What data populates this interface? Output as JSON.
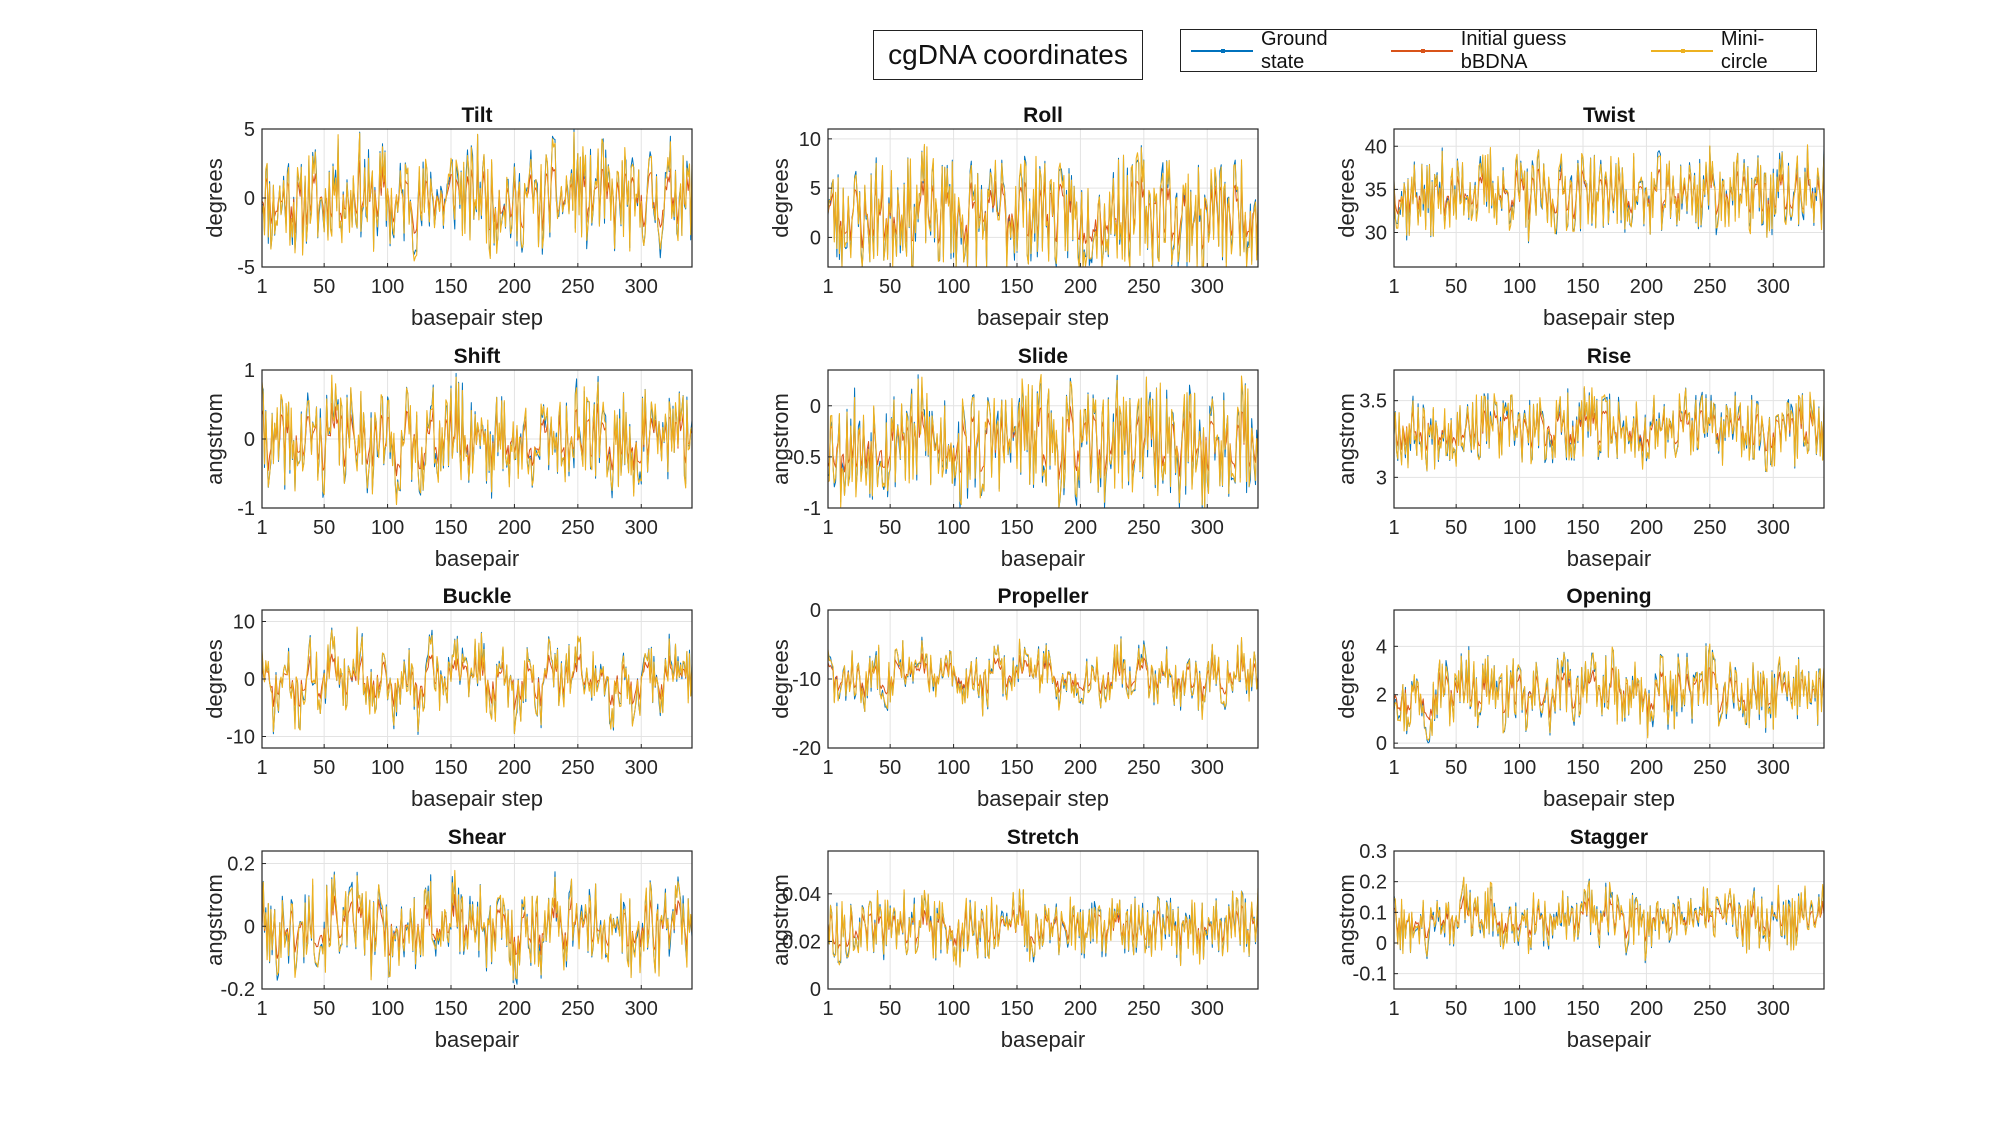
{
  "figure": {
    "title": "cgDNA coordinates",
    "legend": [
      {
        "label": "Ground state",
        "color": "#0072BD"
      },
      {
        "label": "Initial guess bBDNA",
        "color": "#D95319"
      },
      {
        "label": "Mini-circle",
        "color": "#EDB120"
      }
    ]
  },
  "chart_data": [
    {
      "type": "line",
      "title": "Tilt",
      "xlabel": "basepair step",
      "ylabel": "degrees",
      "xlim": [
        1,
        340
      ],
      "ylim": [
        -5,
        5
      ],
      "xticks": [
        1,
        50,
        100,
        150,
        200,
        250,
        300
      ],
      "yticks": [
        -5,
        0,
        5
      ],
      "center": 0,
      "amp": 3.6,
      "base_amp": 1.2,
      "seed": 11,
      "series": [
        {
          "name": "Ground state"
        },
        {
          "name": "Initial guess bBDNA"
        },
        {
          "name": "Mini-circle"
        }
      ]
    },
    {
      "type": "line",
      "title": "Roll",
      "xlabel": "basepair step",
      "ylabel": "degrees",
      "xlim": [
        1,
        340
      ],
      "ylim": [
        -3,
        11
      ],
      "xticks": [
        1,
        50,
        100,
        150,
        200,
        250,
        300
      ],
      "yticks": [
        0,
        5,
        10
      ],
      "center": 2.5,
      "amp": 5.5,
      "base_amp": 1.5,
      "seed": 23,
      "series": [
        {
          "name": "Ground state"
        },
        {
          "name": "Initial guess bBDNA"
        },
        {
          "name": "Mini-circle"
        }
      ]
    },
    {
      "type": "line",
      "title": "Twist",
      "xlabel": "basepair step",
      "ylabel": "degrees",
      "xlim": [
        1,
        340
      ],
      "ylim": [
        26,
        42
      ],
      "xticks": [
        1,
        50,
        100,
        150,
        200,
        250,
        300
      ],
      "yticks": [
        30,
        35,
        40
      ],
      "center": 34.5,
      "amp": 4.5,
      "base_amp": 1.2,
      "seed": 37,
      "series": [
        {
          "name": "Ground state"
        },
        {
          "name": "Initial guess bBDNA"
        },
        {
          "name": "Mini-circle"
        }
      ]
    },
    {
      "type": "line",
      "title": "Shift",
      "xlabel": "basepair",
      "ylabel": "angstrom",
      "xlim": [
        1,
        340
      ],
      "ylim": [
        -1,
        1
      ],
      "xticks": [
        1,
        50,
        100,
        150,
        200,
        250,
        300
      ],
      "yticks": [
        -1,
        0,
        1
      ],
      "center": 0,
      "amp": 0.7,
      "base_amp": 0.25,
      "seed": 41,
      "series": [
        {
          "name": "Ground state"
        },
        {
          "name": "Initial guess bBDNA"
        },
        {
          "name": "Mini-circle"
        }
      ]
    },
    {
      "type": "line",
      "title": "Slide",
      "xlabel": "basepair",
      "ylabel": "angstrom",
      "xlim": [
        1,
        340
      ],
      "ylim": [
        -1,
        0.35
      ],
      "xticks": [
        1,
        50,
        100,
        150,
        200,
        250,
        300
      ],
      "yticks": [
        -1,
        -0.5,
        0
      ],
      "center": -0.35,
      "amp": 0.55,
      "base_amp": 0.15,
      "seed": 53,
      "series": [
        {
          "name": "Ground state"
        },
        {
          "name": "Initial guess bBDNA"
        },
        {
          "name": "Mini-circle"
        }
      ]
    },
    {
      "type": "line",
      "title": "Rise",
      "xlabel": "basepair",
      "ylabel": "angstrom",
      "xlim": [
        1,
        340
      ],
      "ylim": [
        2.8,
        3.7
      ],
      "xticks": [
        1,
        50,
        100,
        150,
        200,
        250,
        300
      ],
      "yticks": [
        3,
        3.5
      ],
      "center": 3.32,
      "amp": 0.22,
      "base_amp": 0.06,
      "seed": 67,
      "series": [
        {
          "name": "Ground state"
        },
        {
          "name": "Initial guess bBDNA"
        },
        {
          "name": "Mini-circle"
        }
      ]
    },
    {
      "type": "line",
      "title": "Buckle",
      "xlabel": "basepair step",
      "ylabel": "degrees",
      "xlim": [
        1,
        340
      ],
      "ylim": [
        -12,
        12
      ],
      "xticks": [
        1,
        50,
        100,
        150,
        200,
        250,
        300
      ],
      "yticks": [
        -10,
        0,
        10
      ],
      "center": 0,
      "amp": 5,
      "base_amp": 5,
      "seed": 71,
      "series": [
        {
          "name": "Ground state"
        },
        {
          "name": "Initial guess bBDNA"
        },
        {
          "name": "Mini-circle"
        }
      ]
    },
    {
      "type": "line",
      "title": "Propeller",
      "xlabel": "basepair step",
      "ylabel": "degrees",
      "xlim": [
        1,
        340
      ],
      "ylim": [
        -20,
        0
      ],
      "xticks": [
        1,
        50,
        100,
        150,
        200,
        250,
        300
      ],
      "yticks": [
        -20,
        -10,
        0
      ],
      "center": -9.5,
      "amp": 3.5,
      "base_amp": 3,
      "seed": 83,
      "series": [
        {
          "name": "Ground state"
        },
        {
          "name": "Initial guess bBDNA"
        },
        {
          "name": "Mini-circle"
        }
      ]
    },
    {
      "type": "line",
      "title": "Opening",
      "xlabel": "basepair step",
      "ylabel": "degrees",
      "xlim": [
        1,
        340
      ],
      "ylim": [
        -0.2,
        5.5
      ],
      "xticks": [
        1,
        50,
        100,
        150,
        200,
        250,
        300
      ],
      "yticks": [
        0,
        2,
        4
      ],
      "center": 2.1,
      "amp": 1.3,
      "base_amp": 0.8,
      "seed": 97,
      "series": [
        {
          "name": "Ground state"
        },
        {
          "name": "Initial guess bBDNA"
        },
        {
          "name": "Mini-circle"
        }
      ]
    },
    {
      "type": "line",
      "title": "Shear",
      "xlabel": "basepair",
      "ylabel": "angstrom",
      "xlim": [
        1,
        340
      ],
      "ylim": [
        -0.2,
        0.24
      ],
      "xticks": [
        1,
        50,
        100,
        150,
        200,
        250,
        300
      ],
      "yticks": [
        -0.2,
        0,
        0.2
      ],
      "center": 0,
      "amp": 0.13,
      "base_amp": 0.06,
      "seed": 101,
      "series": [
        {
          "name": "Ground state"
        },
        {
          "name": "Initial guess bBDNA"
        },
        {
          "name": "Mini-circle"
        }
      ]
    },
    {
      "type": "line",
      "title": "Stretch",
      "xlabel": "basepair",
      "ylabel": "angstrom",
      "xlim": [
        1,
        340
      ],
      "ylim": [
        0,
        0.058
      ],
      "xticks": [
        1,
        50,
        100,
        150,
        200,
        250,
        300
      ],
      "yticks": [
        0,
        0.02,
        0.04
      ],
      "center": 0.026,
      "amp": 0.013,
      "base_amp": 0.004,
      "seed": 113,
      "series": [
        {
          "name": "Ground state"
        },
        {
          "name": "Initial guess bBDNA"
        },
        {
          "name": "Mini-circle"
        }
      ]
    },
    {
      "type": "line",
      "title": "Stagger",
      "xlabel": "basepair",
      "ylabel": "angstrom",
      "xlim": [
        1,
        340
      ],
      "ylim": [
        -0.15,
        0.3
      ],
      "xticks": [
        1,
        50,
        100,
        150,
        200,
        250,
        300
      ],
      "yticks": [
        -0.1,
        0,
        0.1,
        0.2,
        0.3
      ],
      "center": 0.08,
      "amp": 0.09,
      "base_amp": 0.05,
      "seed": 127,
      "series": [
        {
          "name": "Ground state"
        },
        {
          "name": "Initial guess bBDNA"
        },
        {
          "name": "Mini-circle"
        }
      ]
    }
  ]
}
